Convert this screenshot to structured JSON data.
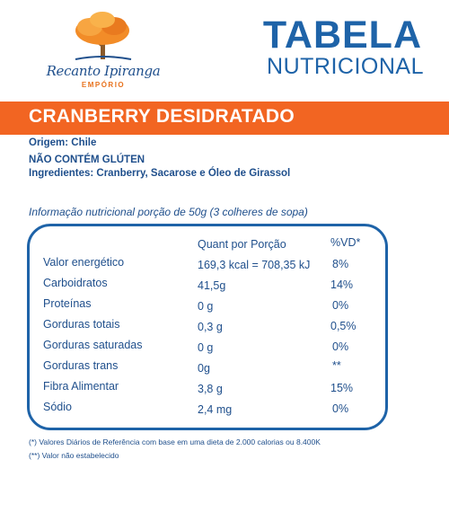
{
  "brand": {
    "name": "Recanto Ipiranga",
    "sub": "EMPÓRIO",
    "colors": {
      "tree_top": "#f28c28",
      "trunk": "#8a5a2b",
      "accent": "#e8731f"
    }
  },
  "title": {
    "line1": "TABELA",
    "line2": "NUTRICIONAL",
    "color": "#1e63a8"
  },
  "product": {
    "name": "CRANBERRY DESIDRATADO",
    "banner_color": "#f26522"
  },
  "details": {
    "origin": "Origem: Chile",
    "gluten": "NÃO CONTÉM GLÚTEN",
    "ingredients": "Ingredientes:  Cranberry, Sacarose e Óleo de Girassol"
  },
  "serving": "Informação nutricional porção de 50g (3 colheres de sopa)",
  "table": {
    "headers": {
      "portion": "Quant por Porção",
      "vd": "%VD*"
    },
    "rows": [
      {
        "name": "Valor energético",
        "amount": "169,3 kcal = 708,35 kJ",
        "vd": "8%"
      },
      {
        "name": "Carboidratos",
        "amount": "41,5g",
        "vd": "14%"
      },
      {
        "name": "Proteínas",
        "amount": "0 g",
        "vd": "0%"
      },
      {
        "name": "Gorduras totais",
        "amount": "0,3 g",
        "vd": "0,5%"
      },
      {
        "name": "Gorduras saturadas",
        "amount": "0 g",
        "vd": "0%"
      },
      {
        "name": "Gorduras trans",
        "amount": "0g",
        "vd": "**"
      },
      {
        "name": "Fibra Alimentar",
        "amount": "3,8 g",
        "vd": "15%"
      },
      {
        "name": "Sódio",
        "amount": "2,4 mg",
        "vd": "0%"
      }
    ]
  },
  "footnotes": {
    "note1": "(*) Valores Diários de Referência com base em uma dieta de 2.000 calorias ou 8.400K",
    "note2": "(**) Valor não estabelecido"
  }
}
